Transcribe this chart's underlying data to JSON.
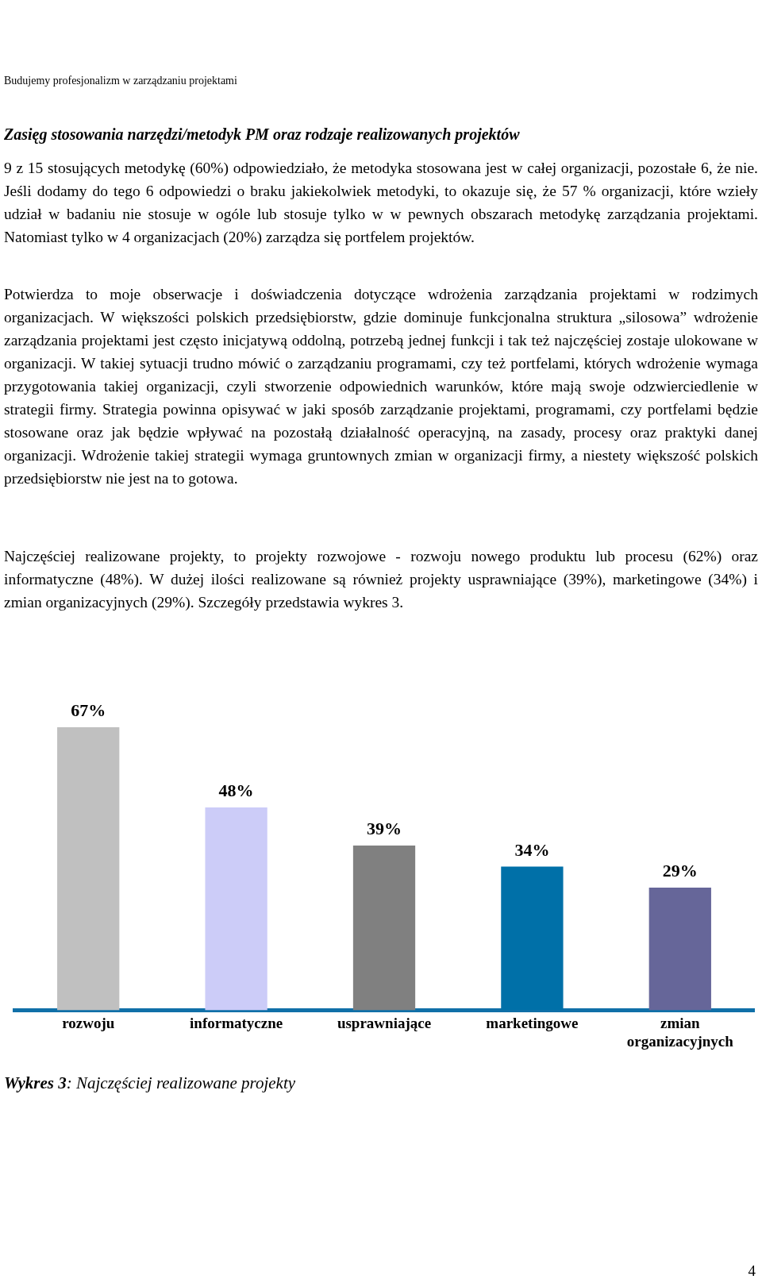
{
  "chart_data": {
    "type": "bar",
    "title": "Wykres 3: Najczęściej realizowane projekty",
    "annotations": [
      "Budujemy profesjonalizm w zarządzaniu projektami",
      "Zasięg stosowania narzędzi/metodyk PM oraz rodzaje realizowanych  projektów",
      "9 z 15 stosujących metodykę (60%) odpowiedziało, że  metodyka stosowana jest w całej organizacji, pozostałe 6, że nie. Jeśli dodamy do tego 6 odpowiedzi o braku jakiekolwiek metodyki, to okazuje się, że  57 % organizacji, które wzieły udział w badaniu nie stosuje w ogóle lub stosuje tylko w w pewnych obszarach metodykę zarządzania projektami. Natomiast tylko w  4 organizacjach (20%) zarządza się portfelem projektów.",
      "Potwierdza to  moje obserwacje i doświadczenia dotyczące wdrożenia zarządzania projektami w rodzimych organizacjach. W większości polskich przedsiębiorstw, gdzie dominuje funkcjonalna struktura „silosowa”  wdrożenie zarządzania projektami jest często inicjatywą oddolną, potrzebą jednej funkcji i tak też najczęściej zostaje ulokowane w organizacji. W takiej sytuacji trudno mówić o zarządzaniu programami, czy też portfelami, których wdrożenie wymaga przygotowania takiej organizacji, czyli stworzenie odpowiednich warunków, które mają swoje odzwierciedlenie w strategii firmy. Strategia powinna opisywać w jaki sposób zarządzanie projektami, programami, czy portfelami będzie stosowane oraz jak będzie wpływać na pozostałą działalność operacyjną, na zasady, procesy oraz praktyki danej organizacji. Wdrożenie takiej strategii wymaga gruntownych zmian w organizacji firmy, a niestety większość polskich przedsiębiorstw nie jest na to gotowa.",
      "Najczęściej realizowane projekty, to projekty rozwojowe - rozwoju nowego produktu lub procesu (62%) oraz informatyczne (48%). W dużej ilości realizowane są również projekty usprawniające (39%), marketingowe (34%) i zmian organizacyjnych (29%). Szczegóły przedstawia wykres 3.",
      "4"
    ],
    "categories": [
      "rozwoju",
      "informatyczne",
      "usprawniające",
      "marketingowe",
      "zmian organizacyjnych"
    ],
    "values": [
      67,
      48,
      39,
      34,
      29
    ],
    "colors": [
      "#c0c0c0",
      "#ccccf8",
      "#808080",
      "#0070a8",
      "#666699"
    ],
    "value_labels": [
      "67%",
      "48%",
      "39%",
      "34%",
      "29%"
    ],
    "grid": false,
    "legend": false
  }
}
